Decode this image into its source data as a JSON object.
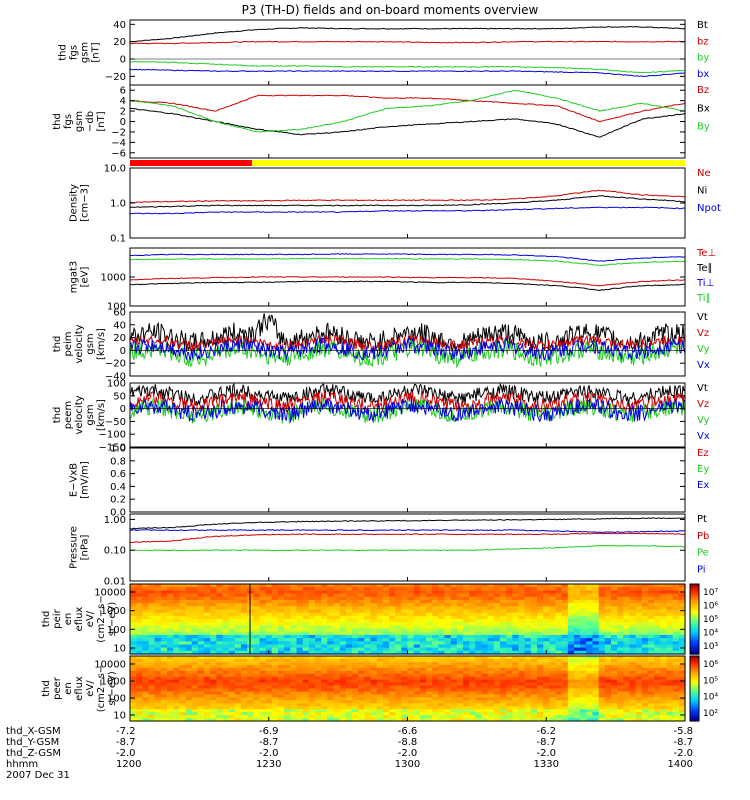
{
  "title": "P3 (TH-D) fields and on-board moments overview",
  "colors": {
    "black": "#000000",
    "red": "#cc0000",
    "green": "#22cc22",
    "blue": "#0000dd",
    "brightred": "#ff0000",
    "yellow": "#ffff00"
  },
  "x_axis": {
    "row_labels": [
      "thd_X-GSM",
      "thd_Y-GSM",
      "thd_Z-GSM",
      "hhmm"
    ],
    "date": "2007 Dec 31",
    "columns": [
      {
        "hhmm": "1200",
        "x": "-7.2",
        "y": "-8.7",
        "z": "-2.0"
      },
      {
        "hhmm": "1230",
        "x": "-6.9",
        "y": "-8.7",
        "z": "-2.0"
      },
      {
        "hhmm": "1300",
        "x": "-6.6",
        "y": "-8.8",
        "z": "-2.0"
      },
      {
        "hhmm": "1330",
        "x": "-6.2",
        "y": "-8.7",
        "z": "-2.0"
      },
      {
        "hhmm": "1400",
        "x": "-5.8",
        "y": "-8.7",
        "z": "-2.0"
      }
    ]
  },
  "status_bar": {
    "colors": [
      "red",
      "yellow"
    ],
    "split_time": "1231"
  },
  "colorbars": [
    {
      "ticks": [
        "10⁷",
        "10⁶",
        "10⁵",
        "10⁴",
        "10³"
      ]
    },
    {
      "ticks": [
        "10⁶",
        "10⁵",
        "10⁴",
        "10²"
      ]
    }
  ],
  "chart_data": [
    {
      "type": "line",
      "ylabel": [
        "thd",
        "fgs",
        "gsm",
        "[nT]"
      ],
      "ylim": [
        -30,
        45
      ],
      "yticks": [
        "40",
        "20",
        "0",
        "−20"
      ],
      "series": [
        {
          "name": "Bt",
          "color": "black",
          "values": [
            20,
            24,
            30,
            34,
            36,
            35,
            35,
            35,
            35,
            35,
            35,
            37,
            37,
            35
          ]
        },
        {
          "name": "bz",
          "color": "red",
          "values": [
            18,
            18,
            19,
            20,
            20,
            20,
            20,
            19,
            19,
            20,
            20,
            20,
            20,
            20
          ]
        },
        {
          "name": "by",
          "color": "green",
          "values": [
            -3,
            -4,
            -6,
            -8,
            -8,
            -9,
            -9,
            -9,
            -9,
            -9,
            -10,
            -12,
            -16,
            -13
          ]
        },
        {
          "name": "bx",
          "color": "blue",
          "values": [
            -12,
            -13,
            -14,
            -14,
            -14,
            -14,
            -14,
            -14,
            -14,
            -14,
            -15,
            -16,
            -20,
            -16
          ]
        }
      ]
    },
    {
      "type": "line",
      "ylabel": [
        "thd",
        "fgs",
        "gsm",
        "−db",
        "[nT]"
      ],
      "ylim": [
        -7,
        7
      ],
      "yticks": [
        "6",
        "4",
        "2",
        "0",
        "−2",
        "−4",
        "−6"
      ],
      "series": [
        {
          "name": "Bz",
          "color": "red",
          "values": [
            4,
            3.5,
            2,
            5,
            5,
            5,
            4.5,
            4.5,
            4,
            3.5,
            3,
            0,
            2,
            3.5
          ]
        },
        {
          "name": "Bx",
          "color": "black",
          "values": [
            2.5,
            1.5,
            0,
            -1.5,
            -2.5,
            -2,
            -1,
            -0.5,
            0,
            0.5,
            -0.5,
            -3,
            0.5,
            1.5
          ]
        },
        {
          "name": "By",
          "color": "green",
          "values": [
            4,
            3,
            0,
            -2,
            -1.5,
            0,
            2.5,
            3,
            4,
            6,
            4.5,
            2,
            3.5,
            2
          ]
        }
      ]
    },
    {
      "type": "line",
      "log": true,
      "ylabel": [
        "Density",
        "[cm−3]"
      ],
      "ylim": [
        0.1,
        10
      ],
      "yticks": [
        "10.0",
        "1.0",
        "0.1"
      ],
      "series": [
        {
          "name": "Ne",
          "color": "red",
          "values": [
            1.05,
            1.1,
            1.15,
            1.15,
            1.2,
            1.2,
            1.2,
            1.2,
            1.2,
            1.3,
            1.6,
            2.3,
            1.7,
            1.5
          ]
        },
        {
          "name": "Ni",
          "color": "black",
          "values": [
            0.75,
            0.8,
            0.85,
            0.85,
            0.85,
            0.85,
            0.85,
            0.85,
            0.9,
            1.0,
            1.2,
            1.6,
            1.3,
            1.1
          ]
        },
        {
          "name": "Npot",
          "color": "blue",
          "values": [
            0.5,
            0.5,
            0.55,
            0.55,
            0.55,
            0.55,
            0.6,
            0.6,
            0.6,
            0.65,
            0.7,
            0.75,
            0.75,
            0.7
          ]
        }
      ]
    },
    {
      "type": "line",
      "log": true,
      "ylabel": [
        "mgat3",
        "[eV]"
      ],
      "ylim": [
        100,
        10000
      ],
      "yticks": [
        "1000",
        "100"
      ],
      "series": [
        {
          "name": "Te⊥",
          "color": "red",
          "values": [
            800,
            900,
            950,
            1000,
            1000,
            1000,
            1000,
            950,
            950,
            900,
            700,
            500,
            700,
            800
          ]
        },
        {
          "name": "Te∥",
          "color": "black",
          "values": [
            550,
            600,
            650,
            650,
            700,
            700,
            700,
            650,
            650,
            600,
            500,
            350,
            500,
            550
          ]
        },
        {
          "name": "Ti⊥",
          "color": "blue",
          "values": [
            5500,
            6000,
            6000,
            6000,
            6000,
            6200,
            6200,
            6000,
            6000,
            5800,
            5000,
            3500,
            4500,
            5000
          ]
        },
        {
          "name": "Ti∥",
          "color": "green",
          "values": [
            4000,
            4200,
            4200,
            4200,
            4300,
            4300,
            4300,
            4200,
            4200,
            4000,
            3500,
            2500,
            3200,
            3500
          ]
        }
      ]
    },
    {
      "type": "line",
      "ylabel": [
        "thd",
        "peim",
        "velocity",
        "gsm",
        "[km/s]"
      ],
      "ylim": [
        -40,
        60
      ],
      "yticks": [
        "60",
        "40",
        "20",
        "0",
        "−20",
        "−40"
      ],
      "series": [
        {
          "name": "Vt",
          "color": "black",
          "base": 20,
          "noise": 20,
          "bumps": [
            [
              0.25,
              30
            ]
          ]
        },
        {
          "name": "Vz",
          "color": "red",
          "base": 12,
          "noise": 10
        },
        {
          "name": "Vy",
          "color": "green",
          "base": -5,
          "noise": 18
        },
        {
          "name": "Vx",
          "color": "blue",
          "base": 2,
          "noise": 15
        }
      ]
    },
    {
      "type": "line",
      "ylabel": [
        "thd",
        "peem",
        "velocity",
        "gsm",
        "[km/s]"
      ],
      "ylim": [
        -150,
        100
      ],
      "yticks": [
        "100",
        "50",
        "0",
        "−50",
        "−100",
        "−150"
      ],
      "series": [
        {
          "name": "Vt",
          "color": "black",
          "base": 55,
          "noise": 35
        },
        {
          "name": "Vz",
          "color": "red",
          "base": 25,
          "noise": 35
        },
        {
          "name": "Vy",
          "color": "green",
          "base": -10,
          "noise": 40
        },
        {
          "name": "Vx",
          "color": "blue",
          "base": -5,
          "noise": 40
        }
      ]
    },
    {
      "type": "line",
      "ylabel": [
        "E−VxB",
        "[mV/m]"
      ],
      "ylim": [
        0,
        1
      ],
      "yticks": [
        "1.0",
        "0.8",
        "0.6",
        "0.4",
        "0.2",
        "0.0"
      ],
      "series": [
        {
          "name": "Ez",
          "color": "red",
          "values": []
        },
        {
          "name": "Ey",
          "color": "green",
          "values": []
        },
        {
          "name": "Ex",
          "color": "blue",
          "values": []
        }
      ]
    },
    {
      "type": "line",
      "log": true,
      "ylabel": [
        "Pressure",
        "[nPa]"
      ],
      "ylim": [
        0.01,
        1.5
      ],
      "yticks": [
        "1.00",
        "0.10",
        "0.01"
      ],
      "series": [
        {
          "name": "Pt",
          "color": "black",
          "values": [
            0.5,
            0.55,
            0.7,
            0.8,
            0.85,
            0.88,
            0.9,
            0.92,
            0.95,
            0.97,
            1.0,
            1.05,
            1.1,
            1.1
          ]
        },
        {
          "name": "Pb",
          "color": "red",
          "values": [
            0.18,
            0.2,
            0.28,
            0.32,
            0.33,
            0.33,
            0.33,
            0.33,
            0.33,
            0.33,
            0.33,
            0.35,
            0.35,
            0.33
          ]
        },
        {
          "name": "Pe",
          "color": "green",
          "values": [
            0.1,
            0.1,
            0.1,
            0.1,
            0.1,
            0.1,
            0.1,
            0.1,
            0.1,
            0.11,
            0.12,
            0.14,
            0.14,
            0.13
          ]
        },
        {
          "name": "Pi",
          "color": "blue",
          "values": [
            0.45,
            0.45,
            0.45,
            0.45,
            0.45,
            0.45,
            0.45,
            0.45,
            0.45,
            0.45,
            0.42,
            0.38,
            0.4,
            0.42
          ]
        }
      ]
    },
    {
      "type": "heatmap",
      "ylabel": [
        "thd",
        "peir",
        "en",
        "eflux",
        "eV/",
        "(cm2−s−",
        "sr−eV)"
      ],
      "yticks": [
        "10000",
        "1000",
        "100",
        "10"
      ]
    },
    {
      "type": "heatmap",
      "ylabel": [
        "thd",
        "peer",
        "en",
        "eflux",
        "eV/",
        "(cm2−s−",
        "sr−eV)"
      ],
      "yticks": [
        "10000",
        "1000",
        "100",
        "10"
      ]
    }
  ]
}
